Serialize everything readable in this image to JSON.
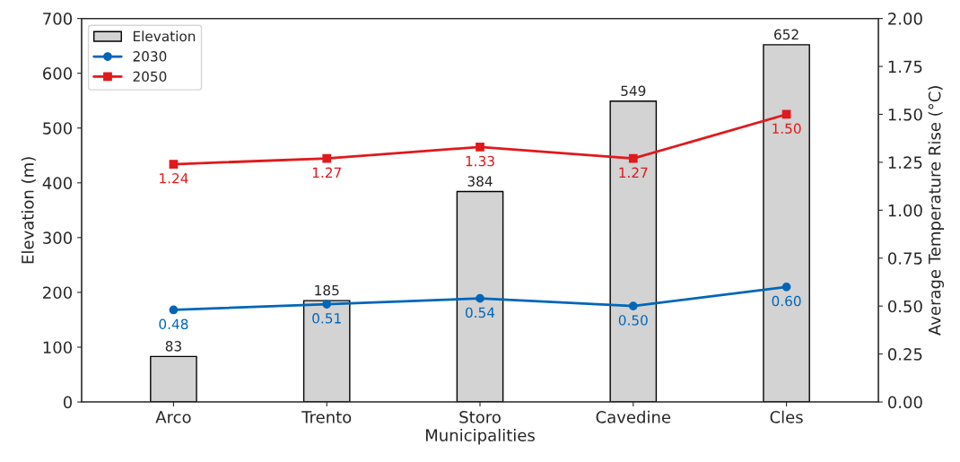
{
  "chart_data": {
    "type": "bar",
    "xlabel": "Municipalities",
    "ylabel": "Elevation (m)",
    "y2label": "Average Temperature Rise (°C)",
    "categories": [
      "Arco",
      "Trento",
      "Storo",
      "Cavedine",
      "Cles"
    ],
    "series": [
      {
        "name": "Elevation",
        "color": "#d3d3d3",
        "values": [
          83,
          185,
          384,
          549,
          652
        ],
        "value_labels": [
          "83",
          "185",
          "384",
          "549",
          "652"
        ]
      },
      {
        "name": "2030",
        "type": "line",
        "axis": "y2",
        "marker": "circle",
        "color": "#0066b8",
        "values": [
          0.48,
          0.51,
          0.54,
          0.5,
          0.6
        ],
        "value_labels": [
          "0.48",
          "0.51",
          "0.54",
          "0.50",
          "0.60"
        ]
      },
      {
        "name": "2050",
        "type": "line",
        "axis": "y2",
        "marker": "square",
        "color": "#e0191c",
        "values": [
          1.24,
          1.27,
          1.33,
          1.27,
          1.5
        ],
        "value_labels": [
          "1.24",
          "1.27",
          "1.33",
          "1.27",
          "1.50"
        ]
      }
    ],
    "ylim": [
      0,
      700
    ],
    "yticks": [
      0,
      100,
      200,
      300,
      400,
      500,
      600,
      700
    ],
    "y2lim": [
      0,
      2
    ],
    "y2ticks": [
      {
        "value": 0,
        "label": "0.00"
      },
      {
        "value": 0.25,
        "label": "0.25"
      },
      {
        "value": 0.5,
        "label": "0.50"
      },
      {
        "value": 0.75,
        "label": "0.75"
      },
      {
        "value": 1,
        "label": "1.00"
      },
      {
        "value": 1.25,
        "label": "1.25"
      },
      {
        "value": 1.5,
        "label": "1.50"
      },
      {
        "value": 1.75,
        "label": "1.75"
      },
      {
        "value": 2,
        "label": "2.00"
      }
    ],
    "legend": "top left",
    "grid": false
  }
}
